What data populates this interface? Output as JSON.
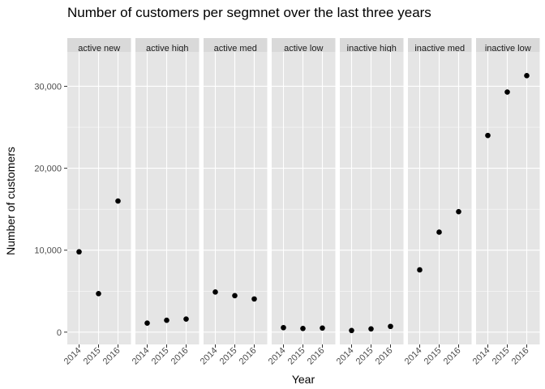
{
  "chart_data": {
    "type": "scatter",
    "title": "Number of customers per segmnet over the last three years",
    "xlabel": "Year",
    "ylabel": "Number of customers",
    "x": [
      "2014",
      "2015",
      "2016"
    ],
    "ylim": [
      -1500,
      34200
    ],
    "yticks": [
      0,
      10000,
      20000,
      30000
    ],
    "ytick_labels": [
      "0",
      "10,000",
      "20,000",
      "30,000"
    ],
    "grid": true,
    "facets": [
      {
        "name": "active new",
        "values": [
          9800,
          4700,
          16000
        ]
      },
      {
        "name": "active high",
        "values": [
          1100,
          1450,
          1600
        ]
      },
      {
        "name": "active med",
        "values": [
          4900,
          4450,
          4050
        ]
      },
      {
        "name": "active low",
        "values": [
          550,
          450,
          500
        ]
      },
      {
        "name": "inactive high",
        "values": [
          200,
          400,
          700
        ]
      },
      {
        "name": "inactive med",
        "values": [
          7600,
          12200,
          14700
        ]
      },
      {
        "name": "inactive low",
        "values": [
          24000,
          29300,
          31300
        ]
      }
    ],
    "colors": {
      "panel_bg": "#e5e5e5",
      "strip_bg": "#d9d9d9",
      "grid": "#ffffff",
      "point": "#000000"
    }
  }
}
